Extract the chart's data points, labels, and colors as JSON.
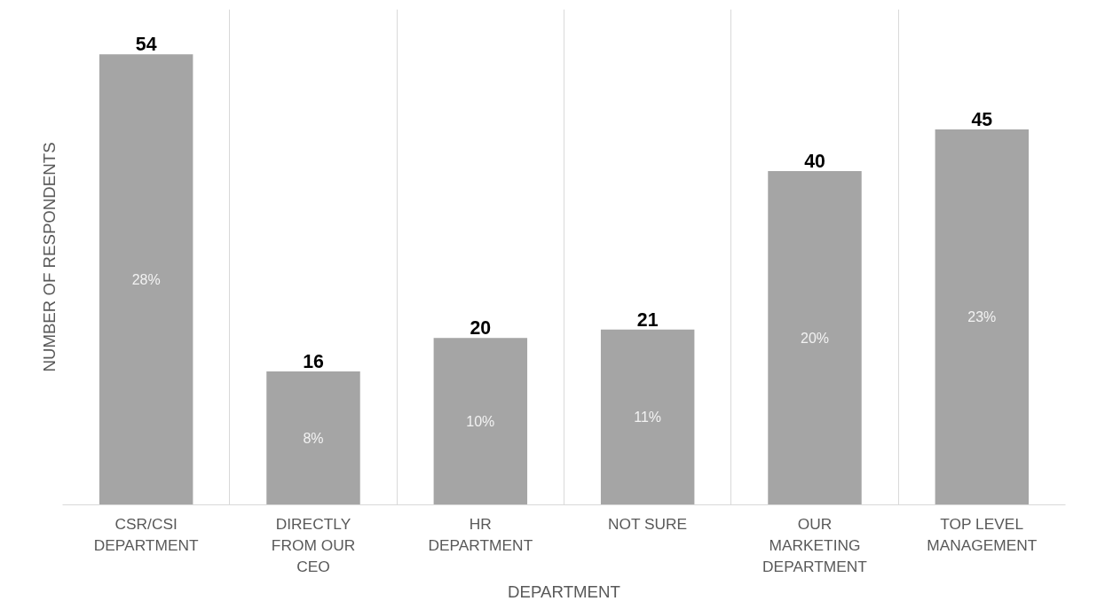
{
  "chart_data": {
    "type": "bar",
    "xlabel": "DEPARTMENT",
    "ylabel": "NUMBER OF RESPONDENTS",
    "categories": [
      "CSR/CSI DEPARTMENT",
      "DIRECTLY FROM OUR CEO",
      "HR DEPARTMENT",
      "NOT SURE",
      "OUR MARKETING DEPARTMENT",
      "TOP LEVEL MANAGEMENT"
    ],
    "values": [
      54,
      16,
      20,
      21,
      40,
      45
    ],
    "color": "#a5a5a5",
    "data_labels": true,
    "annotations": [
      "28%",
      "8%",
      "10%",
      "11%",
      "20%",
      "23%"
    ],
    "grid": "x"
  }
}
